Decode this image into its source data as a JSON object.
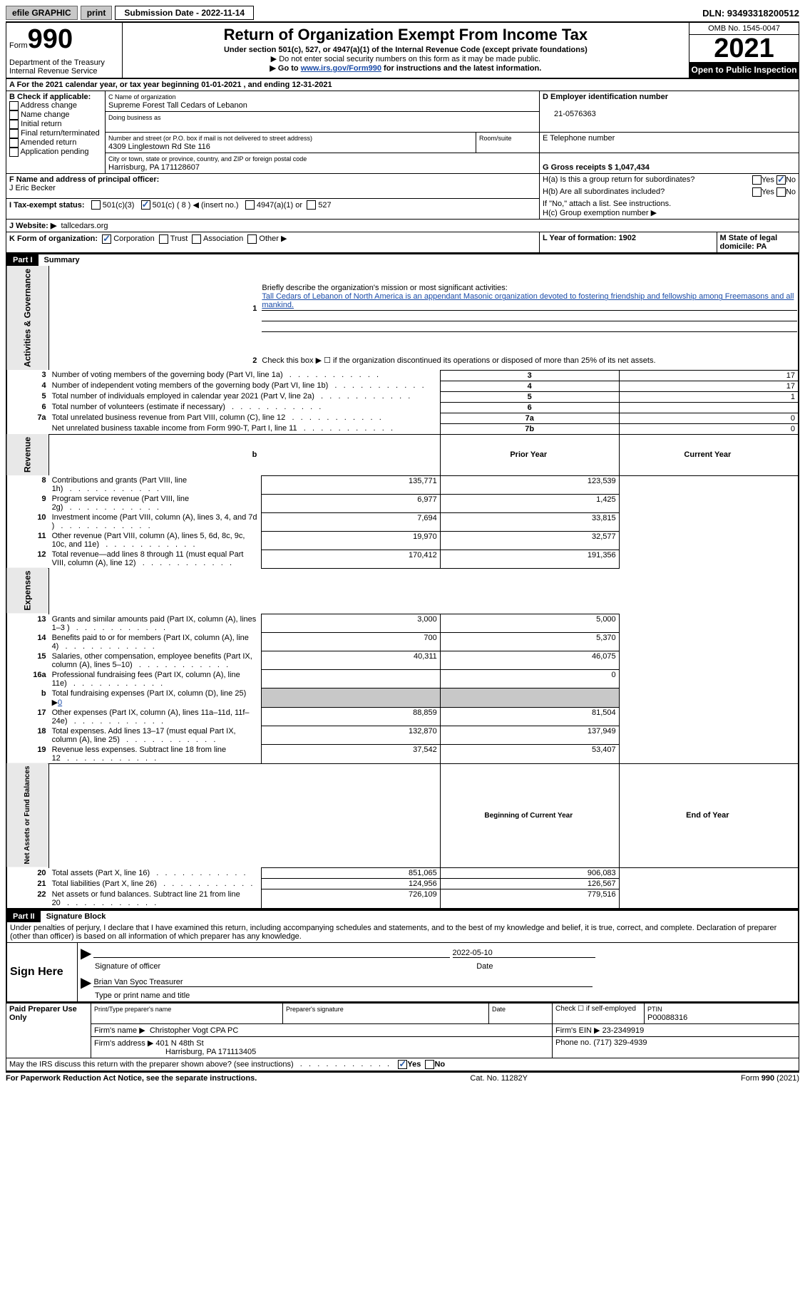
{
  "topbar": {
    "efile": "efile GRAPHIC",
    "print": "print",
    "sub_date_label": "Submission Date - 2022-11-14",
    "dln": "DLN: 93493318200512"
  },
  "header": {
    "form_label": "Form",
    "form_num": "990",
    "dept": "Department of the Treasury\nInternal Revenue Service",
    "title": "Return of Organization Exempt From Income Tax",
    "subtitle": "Under section 501(c), 527, or 4947(a)(1) of the Internal Revenue Code (except private foundations)",
    "note1": "▶ Do not enter social security numbers on this form as it may be made public.",
    "note2_pre": "▶ Go to ",
    "note2_link": "www.irs.gov/Form990",
    "note2_post": " for instructions and the latest information.",
    "omb": "OMB No. 1545-0047",
    "year": "2021",
    "inspect": "Open to Public Inspection"
  },
  "line_a": "A For the 2021 calendar year, or tax year beginning 01-01-2021    , and ending 12-31-2021",
  "box_b": {
    "label": "B Check if applicable:",
    "items": [
      "Address change",
      "Name change",
      "Initial return",
      "Final return/terminated",
      "Amended return",
      "Application pending"
    ]
  },
  "box_c": {
    "name_label": "C Name of organization",
    "name": "Supreme Forest Tall Cedars of Lebanon",
    "dba_label": "Doing business as",
    "addr_label": "Number and street (or P.O. box if mail is not delivered to street address)",
    "room_label": "Room/suite",
    "addr": "4309 Linglestown Rd Ste 116",
    "city_label": "City or town, state or province, country, and ZIP or foreign postal code",
    "city": "Harrisburg, PA  171128607"
  },
  "box_d": {
    "label": "D Employer identification number",
    "value": "21-0576363"
  },
  "box_e": {
    "label": "E Telephone number"
  },
  "box_g": {
    "label": "G Gross receipts $ 1,047,434"
  },
  "box_f": {
    "label": "F  Name and address of principal officer:",
    "value": "J Eric Becker"
  },
  "box_h": {
    "a": "H(a)  Is this a group return for subordinates?",
    "b": "H(b)  Are all subordinates included?",
    "b_note": "If \"No,\" attach a list. See instructions.",
    "c": "H(c)  Group exemption number ▶",
    "yes": "Yes",
    "no": "No"
  },
  "box_i": {
    "label": "I   Tax-exempt status:",
    "opt1": "501(c)(3)",
    "opt2": "501(c) ( 8 ) ◀ (insert no.)",
    "opt3": "4947(a)(1) or",
    "opt4": "527"
  },
  "box_j": {
    "label": "J   Website: ▶",
    "value": "tallcedars.org"
  },
  "box_k": {
    "label": "K Form of organization:",
    "opt1": "Corporation",
    "opt2": "Trust",
    "opt3": "Association",
    "opt4": "Other ▶"
  },
  "box_l": {
    "label": "L Year of formation: 1902"
  },
  "box_m": {
    "label": "M State of legal domicile: PA"
  },
  "part1": {
    "header": "Part I",
    "title": "Summary",
    "line1_label": "Briefly describe the organization's mission or most significant activities:",
    "line1_text": "Tall Cedars of Lebanon of North America is an appendant Masonic organization devoted to fostering friendship and fellowship among Freemasons and all mankind.",
    "line2": "Check this box ▶ ☐  if the organization discontinued its operations or disposed of more than 25% of its net assets.",
    "vert_ag": "Activities & Governance",
    "vert_rev": "Revenue",
    "vert_exp": "Expenses",
    "vert_na": "Net Assets or Fund Balances",
    "rows_ag": [
      {
        "n": "3",
        "desc": "Number of voting members of the governing body (Part VI, line 1a)",
        "box": "3",
        "val": "17"
      },
      {
        "n": "4",
        "desc": "Number of independent voting members of the governing body (Part VI, line 1b)",
        "box": "4",
        "val": "17"
      },
      {
        "n": "5",
        "desc": "Total number of individuals employed in calendar year 2021 (Part V, line 2a)",
        "box": "5",
        "val": "1"
      },
      {
        "n": "6",
        "desc": "Total number of volunteers (estimate if necessary)",
        "box": "6",
        "val": ""
      },
      {
        "n": "7a",
        "desc": "Total unrelated business revenue from Part VIII, column (C), line 12",
        "box": "7a",
        "val": "0"
      },
      {
        "n": "",
        "desc": "Net unrelated business taxable income from Form 990-T, Part I, line 11",
        "box": "7b",
        "val": "0"
      }
    ],
    "col_prior": "Prior Year",
    "col_current": "Current Year",
    "rows_rev": [
      {
        "n": "8",
        "desc": "Contributions and grants (Part VIII, line 1h)",
        "prior": "135,771",
        "curr": "123,539"
      },
      {
        "n": "9",
        "desc": "Program service revenue (Part VIII, line 2g)",
        "prior": "6,977",
        "curr": "1,425"
      },
      {
        "n": "10",
        "desc": "Investment income (Part VIII, column (A), lines 3, 4, and 7d )",
        "prior": "7,694",
        "curr": "33,815"
      },
      {
        "n": "11",
        "desc": "Other revenue (Part VIII, column (A), lines 5, 6d, 8c, 9c, 10c, and 11e)",
        "prior": "19,970",
        "curr": "32,577"
      },
      {
        "n": "12",
        "desc": "Total revenue—add lines 8 through 11 (must equal Part VIII, column (A), line 12)",
        "prior": "170,412",
        "curr": "191,356"
      }
    ],
    "rows_exp": [
      {
        "n": "13",
        "desc": "Grants and similar amounts paid (Part IX, column (A), lines 1–3 )",
        "prior": "3,000",
        "curr": "5,000"
      },
      {
        "n": "14",
        "desc": "Benefits paid to or for members (Part IX, column (A), line 4)",
        "prior": "700",
        "curr": "5,370"
      },
      {
        "n": "15",
        "desc": "Salaries, other compensation, employee benefits (Part IX, column (A), lines 5–10)",
        "prior": "40,311",
        "curr": "46,075"
      },
      {
        "n": "16a",
        "desc": "Professional fundraising fees (Part IX, column (A), line 11e)",
        "prior": "",
        "curr": "0"
      },
      {
        "n": "b",
        "desc": "Total fundraising expenses (Part IX, column (D), line 25) ▶",
        "special": "0"
      },
      {
        "n": "17",
        "desc": "Other expenses (Part IX, column (A), lines 11a–11d, 11f–24e)",
        "prior": "88,859",
        "curr": "81,504"
      },
      {
        "n": "18",
        "desc": "Total expenses. Add lines 13–17 (must equal Part IX, column (A), line 25)",
        "prior": "132,870",
        "curr": "137,949"
      },
      {
        "n": "19",
        "desc": "Revenue less expenses. Subtract line 18 from line 12",
        "prior": "37,542",
        "curr": "53,407"
      }
    ],
    "col_begin": "Beginning of Current Year",
    "col_end": "End of Year",
    "rows_na": [
      {
        "n": "20",
        "desc": "Total assets (Part X, line 16)",
        "prior": "851,065",
        "curr": "906,083"
      },
      {
        "n": "21",
        "desc": "Total liabilities (Part X, line 26)",
        "prior": "124,956",
        "curr": "126,567"
      },
      {
        "n": "22",
        "desc": "Net assets or fund balances. Subtract line 21 from line 20",
        "prior": "726,109",
        "curr": "779,516"
      }
    ]
  },
  "part2": {
    "header": "Part II",
    "title": "Signature Block",
    "decl": "Under penalties of perjury, I declare that I have examined this return, including accompanying schedules and statements, and to the best of my knowledge and belief, it is true, correct, and complete. Declaration of preparer (other than officer) is based on all information of which preparer has any knowledge.",
    "sign_here": "Sign Here",
    "sig_officer": "Signature of officer",
    "sig_date": "2022-05-10",
    "date_label": "Date",
    "officer_name": "Brian Van Syoc  Treasurer",
    "type_name": "Type or print name and title",
    "paid": "Paid Preparer Use Only",
    "prep_name_label": "Print/Type preparer's name",
    "prep_sig_label": "Preparer's signature",
    "check_label": "Check ☐  if self-employed",
    "ptin_label": "PTIN",
    "ptin": "P00088316",
    "firm_name_label": "Firm's name   ▶",
    "firm_name": "Christopher Vogt CPA PC",
    "firm_ein_label": "Firm's EIN ▶",
    "firm_ein": "23-2349919",
    "firm_addr_label": "Firm's address ▶",
    "firm_addr": "401 N 48th St",
    "firm_city": "Harrisburg, PA  171113405",
    "phone_label": "Phone no.",
    "phone": "(717) 329-4939",
    "discuss": "May the IRS discuss this return with the preparer shown above? (see instructions)",
    "yes": "Yes",
    "no": "No"
  },
  "footer": {
    "left": "For Paperwork Reduction Act Notice, see the separate instructions.",
    "center": "Cat. No. 11282Y",
    "right": "Form 990 (2021)"
  }
}
